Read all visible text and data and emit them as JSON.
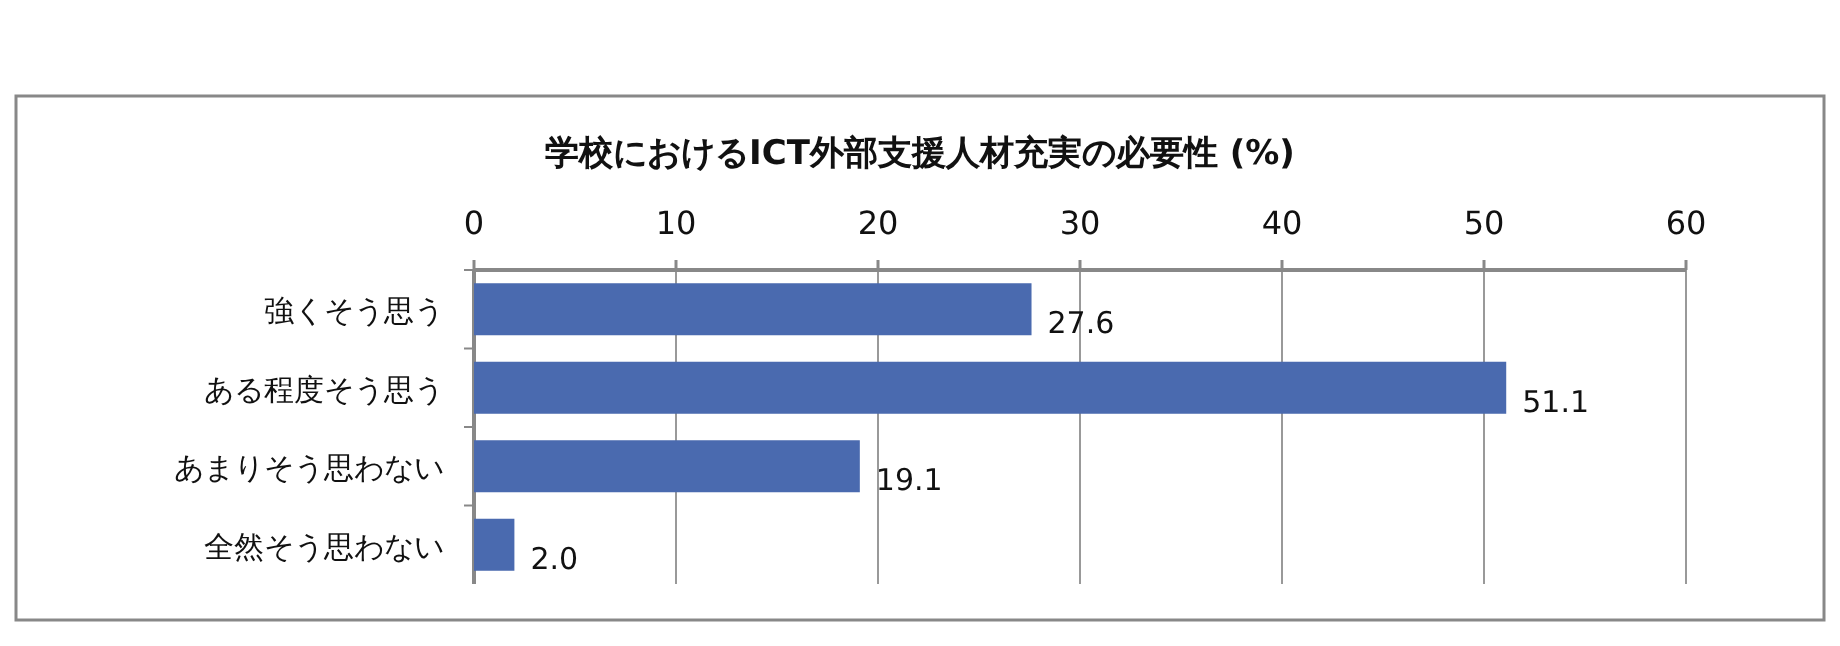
{
  "chart_data": {
    "type": "bar",
    "orientation": "horizontal",
    "title": "学校におけるICT外部支援人材充実の必要性 (%)",
    "categories": [
      "強くそう思う",
      "ある程度そう思う",
      "あまりそう思わない",
      "全然そう思わない"
    ],
    "values": [
      27.6,
      51.1,
      19.1,
      2.0
    ],
    "value_labels": [
      "27.6",
      "51.1",
      "19.1",
      "2.0"
    ],
    "color": "#4a6aaf",
    "xlim": [
      0,
      60
    ],
    "xticks": [
      0,
      10,
      20,
      30,
      40,
      50,
      60
    ],
    "grid": "x"
  }
}
